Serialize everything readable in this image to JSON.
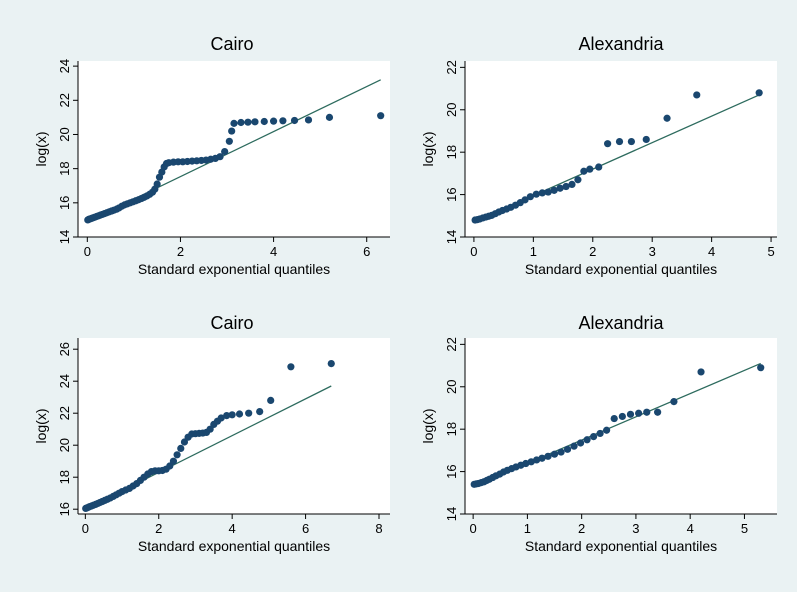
{
  "chart_data": [
    {
      "type": "scatter",
      "title": "Cairo",
      "xlabel": "Standard exponential quantiles",
      "ylabel": "log(x)",
      "xlim": [
        -0.2,
        6.5
      ],
      "ylim": [
        14,
        24.3
      ],
      "xticks": [
        0,
        2,
        4,
        6
      ],
      "yticks": [
        14,
        16,
        18,
        20,
        22,
        24
      ],
      "fit_line": {
        "x": [
          0,
          6.3
        ],
        "y": [
          14.9,
          23.2
        ]
      },
      "points": [
        [
          0.01,
          15.0
        ],
        [
          0.03,
          15.03
        ],
        [
          0.05,
          15.05
        ],
        [
          0.08,
          15.08
        ],
        [
          0.1,
          15.1
        ],
        [
          0.13,
          15.13
        ],
        [
          0.16,
          15.16
        ],
        [
          0.2,
          15.2
        ],
        [
          0.24,
          15.24
        ],
        [
          0.28,
          15.28
        ],
        [
          0.32,
          15.32
        ],
        [
          0.37,
          15.37
        ],
        [
          0.42,
          15.42
        ],
        [
          0.47,
          15.47
        ],
        [
          0.52,
          15.52
        ],
        [
          0.57,
          15.57
        ],
        [
          0.63,
          15.63
        ],
        [
          0.68,
          15.7
        ],
        [
          0.74,
          15.8
        ],
        [
          0.8,
          15.88
        ],
        [
          0.86,
          15.94
        ],
        [
          0.92,
          16.0
        ],
        [
          0.98,
          16.06
        ],
        [
          1.04,
          16.12
        ],
        [
          1.1,
          16.18
        ],
        [
          1.16,
          16.25
        ],
        [
          1.22,
          16.32
        ],
        [
          1.28,
          16.4
        ],
        [
          1.34,
          16.5
        ],
        [
          1.4,
          16.62
        ],
        [
          1.45,
          16.8
        ],
        [
          1.5,
          17.1
        ],
        [
          1.55,
          17.5
        ],
        [
          1.6,
          17.8
        ],
        [
          1.65,
          18.1
        ],
        [
          1.7,
          18.3
        ],
        [
          1.75,
          18.35
        ],
        [
          1.85,
          18.38
        ],
        [
          1.95,
          18.4
        ],
        [
          2.05,
          18.4
        ],
        [
          2.15,
          18.42
        ],
        [
          2.25,
          18.44
        ],
        [
          2.35,
          18.46
        ],
        [
          2.45,
          18.48
        ],
        [
          2.55,
          18.5
        ],
        [
          2.65,
          18.55
        ],
        [
          2.75,
          18.6
        ],
        [
          2.85,
          18.7
        ],
        [
          2.95,
          19.0
        ],
        [
          3.05,
          19.6
        ],
        [
          3.1,
          20.2
        ],
        [
          3.15,
          20.65
        ],
        [
          3.3,
          20.7
        ],
        [
          3.45,
          20.72
        ],
        [
          3.6,
          20.74
        ],
        [
          3.8,
          20.76
        ],
        [
          4.0,
          20.78
        ],
        [
          4.2,
          20.8
        ],
        [
          4.45,
          20.82
        ],
        [
          4.75,
          20.85
        ],
        [
          5.2,
          21.0
        ],
        [
          6.3,
          21.1
        ]
      ]
    },
    {
      "type": "scatter",
      "title": "Alexandria",
      "xlabel": "Standard exponential quantiles",
      "ylabel": "log(x)",
      "xlim": [
        -0.15,
        5.1
      ],
      "ylim": [
        14,
        22.3
      ],
      "xticks": [
        0,
        1,
        2,
        3,
        4,
        5
      ],
      "yticks": [
        14,
        16,
        18,
        20,
        22
      ],
      "fit_line": {
        "x": [
          0,
          4.8
        ],
        "y": [
          14.7,
          20.7
        ]
      },
      "points": [
        [
          0.02,
          14.8
        ],
        [
          0.06,
          14.82
        ],
        [
          0.1,
          14.85
        ],
        [
          0.15,
          14.9
        ],
        [
          0.2,
          14.94
        ],
        [
          0.25,
          14.98
        ],
        [
          0.3,
          15.02
        ],
        [
          0.36,
          15.1
        ],
        [
          0.42,
          15.18
        ],
        [
          0.48,
          15.25
        ],
        [
          0.55,
          15.32
        ],
        [
          0.62,
          15.4
        ],
        [
          0.7,
          15.5
        ],
        [
          0.78,
          15.62
        ],
        [
          0.86,
          15.75
        ],
        [
          0.95,
          15.9
        ],
        [
          1.05,
          16.02
        ],
        [
          1.15,
          16.08
        ],
        [
          1.25,
          16.12
        ],
        [
          1.35,
          16.2
        ],
        [
          1.45,
          16.3
        ],
        [
          1.55,
          16.38
        ],
        [
          1.65,
          16.48
        ],
        [
          1.75,
          16.7
        ],
        [
          1.85,
          17.1
        ],
        [
          1.95,
          17.2
        ],
        [
          2.1,
          17.3
        ],
        [
          2.25,
          18.4
        ],
        [
          2.45,
          18.5
        ],
        [
          2.65,
          18.5
        ],
        [
          2.9,
          18.6
        ],
        [
          3.25,
          19.6
        ],
        [
          3.75,
          20.7
        ],
        [
          4.8,
          20.8
        ]
      ]
    },
    {
      "type": "scatter",
      "title": "Cairo",
      "xlabel": "Standard exponential quantiles",
      "ylabel": "log(x)",
      "xlim": [
        -0.2,
        8.3
      ],
      "ylim": [
        15.7,
        26.7
      ],
      "xticks": [
        0,
        2,
        4,
        6,
        8
      ],
      "yticks": [
        16,
        18,
        20,
        22,
        24,
        26
      ],
      "fit_line": {
        "x": [
          0,
          6.7
        ],
        "y": [
          16.0,
          23.7
        ]
      },
      "points": [
        [
          0.01,
          16.05
        ],
        [
          0.04,
          16.08
        ],
        [
          0.08,
          16.12
        ],
        [
          0.12,
          16.16
        ],
        [
          0.17,
          16.2
        ],
        [
          0.22,
          16.25
        ],
        [
          0.28,
          16.3
        ],
        [
          0.34,
          16.36
        ],
        [
          0.4,
          16.42
        ],
        [
          0.46,
          16.48
        ],
        [
          0.53,
          16.55
        ],
        [
          0.6,
          16.62
        ],
        [
          0.68,
          16.7
        ],
        [
          0.76,
          16.8
        ],
        [
          0.84,
          16.9
        ],
        [
          0.92,
          17.0
        ],
        [
          1.0,
          17.1
        ],
        [
          1.1,
          17.2
        ],
        [
          1.2,
          17.3
        ],
        [
          1.3,
          17.45
        ],
        [
          1.4,
          17.6
        ],
        [
          1.5,
          17.8
        ],
        [
          1.6,
          18.0
        ],
        [
          1.7,
          18.2
        ],
        [
          1.8,
          18.35
        ],
        [
          1.9,
          18.4
        ],
        [
          2.0,
          18.4
        ],
        [
          2.1,
          18.42
        ],
        [
          2.2,
          18.5
        ],
        [
          2.3,
          18.7
        ],
        [
          2.4,
          19.0
        ],
        [
          2.5,
          19.4
        ],
        [
          2.6,
          19.8
        ],
        [
          2.7,
          20.2
        ],
        [
          2.8,
          20.5
        ],
        [
          2.9,
          20.7
        ],
        [
          3.0,
          20.72
        ],
        [
          3.1,
          20.74
        ],
        [
          3.2,
          20.76
        ],
        [
          3.3,
          20.8
        ],
        [
          3.4,
          21.0
        ],
        [
          3.5,
          21.3
        ],
        [
          3.6,
          21.5
        ],
        [
          3.7,
          21.7
        ],
        [
          3.85,
          21.85
        ],
        [
          4.0,
          21.9
        ],
        [
          4.2,
          21.95
        ],
        [
          4.45,
          22.0
        ],
        [
          4.75,
          22.1
        ],
        [
          5.05,
          22.8
        ],
        [
          5.6,
          24.9
        ],
        [
          6.7,
          25.1
        ]
      ]
    },
    {
      "type": "scatter",
      "title": "Alexandria",
      "xlabel": "Standard exponential quantiles",
      "ylabel": "log(x)",
      "xlim": [
        -0.15,
        5.6
      ],
      "ylim": [
        14,
        22.3
      ],
      "xticks": [
        0,
        1,
        2,
        3,
        4,
        5
      ],
      "yticks": [
        14,
        16,
        18,
        20,
        22
      ],
      "fit_line": {
        "x": [
          0,
          5.3
        ],
        "y": [
          15.3,
          21.1
        ]
      },
      "points": [
        [
          0.02,
          15.4
        ],
        [
          0.06,
          15.42
        ],
        [
          0.1,
          15.44
        ],
        [
          0.15,
          15.48
        ],
        [
          0.2,
          15.52
        ],
        [
          0.25,
          15.58
        ],
        [
          0.3,
          15.64
        ],
        [
          0.36,
          15.72
        ],
        [
          0.42,
          15.8
        ],
        [
          0.49,
          15.88
        ],
        [
          0.56,
          15.98
        ],
        [
          0.63,
          16.06
        ],
        [
          0.71,
          16.14
        ],
        [
          0.79,
          16.22
        ],
        [
          0.88,
          16.3
        ],
        [
          0.97,
          16.38
        ],
        [
          1.07,
          16.46
        ],
        [
          1.17,
          16.55
        ],
        [
          1.27,
          16.63
        ],
        [
          1.38,
          16.72
        ],
        [
          1.5,
          16.82
        ],
        [
          1.62,
          16.92
        ],
        [
          1.74,
          17.05
        ],
        [
          1.86,
          17.2
        ],
        [
          1.98,
          17.35
        ],
        [
          2.1,
          17.5
        ],
        [
          2.22,
          17.65
        ],
        [
          2.34,
          17.8
        ],
        [
          2.46,
          17.95
        ],
        [
          2.6,
          18.5
        ],
        [
          2.75,
          18.6
        ],
        [
          2.9,
          18.7
        ],
        [
          3.05,
          18.75
        ],
        [
          3.2,
          18.8
        ],
        [
          3.4,
          18.8
        ],
        [
          3.7,
          19.3
        ],
        [
          4.2,
          20.7
        ],
        [
          5.3,
          20.9
        ]
      ]
    }
  ],
  "colors": {
    "background": "#eaf2f3",
    "plot_region": "#ffffff",
    "marker": "#1a476f",
    "fit_line": "#2d6b5e"
  }
}
